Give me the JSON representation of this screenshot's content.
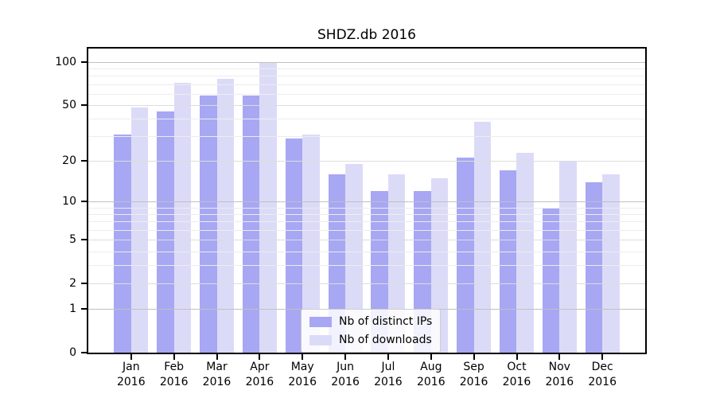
{
  "chart_data": {
    "type": "bar",
    "title": "SHDZ.db 2016",
    "categories": [
      "Jan 2016",
      "Feb 2016",
      "Mar 2016",
      "Apr 2016",
      "May 2016",
      "Jun 2016",
      "Jul 2016",
      "Aug 2016",
      "Sep 2016",
      "Oct 2016",
      "Nov 2016",
      "Dec 2016"
    ],
    "series": [
      {
        "name": "Nb of distinct IPs",
        "color": "#a7a7f3",
        "values": [
          31,
          45,
          58,
          58,
          29,
          16,
          12,
          12,
          21,
          17,
          9,
          14
        ]
      },
      {
        "name": "Nb of downloads",
        "color": "#dbdbf8",
        "values": [
          48,
          72,
          76,
          100,
          31,
          19,
          16,
          15,
          38,
          23,
          20,
          16
        ]
      }
    ],
    "xlabel": "",
    "ylabel": "",
    "yscale": "log1p",
    "ylim": [
      0,
      124
    ],
    "yticks": [
      100,
      50,
      20,
      10,
      5,
      2,
      1,
      0
    ],
    "gridlines_strong": [
      1,
      10,
      100
    ],
    "gridlines_medium": [
      2,
      5,
      20,
      50
    ],
    "gridlines_minor": [
      3,
      4,
      6,
      7,
      8,
      9,
      30,
      40,
      60,
      70,
      80,
      90
    ],
    "grid": true,
    "legend_position": "lower center"
  }
}
